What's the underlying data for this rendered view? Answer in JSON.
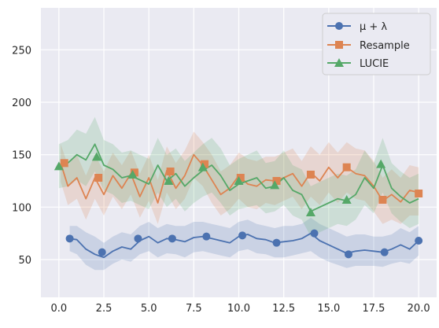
{
  "chart_data": {
    "type": "line",
    "title": "",
    "xlabel": "",
    "ylabel": "",
    "xlim": [
      -1.0,
      21.0
    ],
    "ylim": [
      14,
      290
    ],
    "grid": true,
    "legend_position": "top-right",
    "xticks": [
      0.0,
      2.5,
      5.0,
      7.5,
      10.0,
      12.5,
      15.0,
      17.5,
      20.0
    ],
    "xtick_labels": [
      "0.0",
      "2.5",
      "5.0",
      "7.5",
      "10.0",
      "12.5",
      "15.0",
      "17.5",
      "20.0"
    ],
    "yticks": [
      50,
      100,
      150,
      200,
      250
    ],
    "ytick_labels": [
      "50",
      "100",
      "150",
      "200",
      "250"
    ],
    "series": [
      {
        "name": "μ + λ",
        "color": "#4c72b0",
        "marker": "circle",
        "x": [
          0.6,
          1.0,
          1.5,
          2.0,
          2.5,
          3.0,
          3.5,
          4.0,
          4.5,
          5.0,
          5.5,
          6.0,
          6.5,
          7.0,
          7.5,
          8.0,
          8.5,
          9.0,
          9.5,
          10.0,
          10.5,
          11.0,
          11.5,
          12.0,
          12.5,
          13.0,
          13.5,
          14.0,
          14.5,
          15.0,
          15.5,
          16.0,
          16.5,
          17.0,
          17.5,
          18.0,
          18.5,
          19.0,
          19.5,
          20.0
        ],
        "y": [
          70,
          69,
          60,
          55,
          52,
          58,
          62,
          60,
          68,
          72,
          66,
          70,
          69,
          67,
          71,
          72,
          70,
          68,
          66,
          72,
          74,
          70,
          69,
          66,
          67,
          68,
          70,
          75,
          68,
          64,
          60,
          56,
          58,
          59,
          58,
          57,
          60,
          64,
          60,
          68
        ],
        "lower": [
          58,
          55,
          45,
          40,
          40,
          46,
          50,
          48,
          55,
          58,
          52,
          56,
          55,
          52,
          57,
          58,
          56,
          54,
          52,
          58,
          60,
          56,
          55,
          52,
          52,
          54,
          56,
          58,
          52,
          48,
          45,
          42,
          44,
          44,
          44,
          43,
          46,
          48,
          46,
          54
        ],
        "upper": [
          82,
          82,
          76,
          72,
          66,
          72,
          76,
          74,
          82,
          86,
          80,
          84,
          82,
          82,
          86,
          86,
          84,
          82,
          80,
          86,
          88,
          84,
          82,
          80,
          82,
          82,
          84,
          90,
          84,
          80,
          76,
          72,
          74,
          74,
          72,
          72,
          74,
          80,
          76,
          82
        ],
        "markers_x": [
          0.6,
          2.4,
          4.4,
          6.3,
          8.2,
          10.2,
          12.1,
          14.2,
          16.1,
          18.1,
          20.0
        ],
        "markers_y": [
          70,
          57,
          70,
          70,
          72,
          73,
          66,
          75,
          55,
          57,
          68
        ]
      },
      {
        "name": "Resample",
        "color": "#dd8452",
        "marker": "square",
        "x": [
          0.1,
          0.5,
          1.0,
          1.5,
          2.0,
          2.5,
          3.0,
          3.5,
          4.0,
          4.5,
          5.0,
          5.5,
          6.0,
          6.5,
          7.0,
          7.5,
          8.0,
          8.5,
          9.0,
          9.5,
          10.0,
          10.5,
          11.0,
          11.5,
          12.0,
          12.5,
          13.0,
          13.5,
          14.0,
          14.5,
          15.0,
          15.5,
          16.0,
          16.5,
          17.0,
          17.5,
          18.0,
          18.5,
          19.0,
          19.5,
          20.0
        ],
        "y": [
          142,
          120,
          128,
          108,
          128,
          112,
          130,
          118,
          132,
          110,
          128,
          104,
          135,
          118,
          130,
          150,
          140,
          126,
          112,
          118,
          130,
          122,
          120,
          126,
          125,
          128,
          132,
          120,
          133,
          125,
          138,
          128,
          138,
          132,
          130,
          120,
          106,
          112,
          105,
          116,
          114
        ],
        "lower": [
          124,
          102,
          108,
          88,
          108,
          92,
          110,
          98,
          112,
          90,
          106,
          84,
          114,
          98,
          108,
          128,
          120,
          104,
          92,
          98,
          108,
          100,
          98,
          104,
          102,
          106,
          110,
          98,
          110,
          102,
          114,
          104,
          114,
          108,
          106,
          96,
          84,
          88,
          84,
          92,
          92
        ],
        "upper": [
          160,
          140,
          150,
          130,
          150,
          134,
          152,
          140,
          154,
          132,
          150,
          126,
          158,
          142,
          154,
          172,
          162,
          150,
          134,
          140,
          152,
          146,
          144,
          148,
          148,
          152,
          156,
          144,
          158,
          150,
          162,
          152,
          162,
          156,
          154,
          144,
          128,
          136,
          128,
          140,
          138
        ],
        "markers_x": [
          0.3,
          2.2,
          4.2,
          6.2,
          8.1,
          10.1,
          12.1,
          14.0,
          16.0,
          18.0,
          20.0
        ],
        "markers_y": [
          142,
          128,
          133,
          134,
          141,
          128,
          125,
          131,
          138,
          107,
          113
        ]
      },
      {
        "name": "LUCIE",
        "color": "#55a868",
        "marker": "triangle",
        "x": [
          0.0,
          0.5,
          1.0,
          1.5,
          2.0,
          2.5,
          3.0,
          3.5,
          4.0,
          4.5,
          5.0,
          5.5,
          6.0,
          6.5,
          7.0,
          7.5,
          8.0,
          8.5,
          9.0,
          9.5,
          10.0,
          10.5,
          11.0,
          11.5,
          12.0,
          12.5,
          13.0,
          13.5,
          14.0,
          14.5,
          15.0,
          15.5,
          16.0,
          16.5,
          17.0,
          17.5,
          18.0,
          18.5,
          19.0,
          19.5,
          20.0
        ],
        "y": [
          139,
          142,
          150,
          145,
          160,
          140,
          136,
          128,
          130,
          126,
          122,
          140,
          125,
          132,
          120,
          128,
          135,
          140,
          130,
          116,
          122,
          125,
          128,
          118,
          120,
          128,
          116,
          112,
          96,
          100,
          104,
          108,
          106,
          112,
          128,
          118,
          140,
          118,
          110,
          104,
          108
        ],
        "lower": [
          118,
          120,
          126,
          120,
          134,
          116,
          112,
          104,
          106,
          102,
          98,
          114,
          100,
          108,
          96,
          104,
          110,
          114,
          104,
          92,
          98,
          100,
          102,
          94,
          96,
          102,
          92,
          88,
          72,
          76,
          80,
          84,
          82,
          88,
          102,
          94,
          114,
          94,
          86,
          80,
          84
        ],
        "upper": [
          160,
          164,
          174,
          170,
          186,
          164,
          160,
          152,
          154,
          150,
          146,
          166,
          150,
          156,
          144,
          152,
          160,
          166,
          156,
          140,
          146,
          150,
          154,
          142,
          144,
          154,
          140,
          136,
          120,
          124,
          128,
          132,
          130,
          136,
          154,
          142,
          166,
          142,
          134,
          128,
          132
        ],
        "markers_x": [
          0.0,
          2.1,
          4.1,
          6.1,
          8.0,
          10.0,
          12.0,
          14.0,
          16.0,
          17.9
        ],
        "markers_y": [
          139,
          148,
          131,
          125,
          138,
          125,
          121,
          95,
          107,
          141
        ]
      }
    ]
  },
  "legend": {
    "items": [
      {
        "label": "μ + λ",
        "color": "#4c72b0",
        "marker": "circle"
      },
      {
        "label": "Resample",
        "color": "#dd8452",
        "marker": "square"
      },
      {
        "label": "LUCIE",
        "color": "#55a868",
        "marker": "triangle"
      }
    ]
  }
}
